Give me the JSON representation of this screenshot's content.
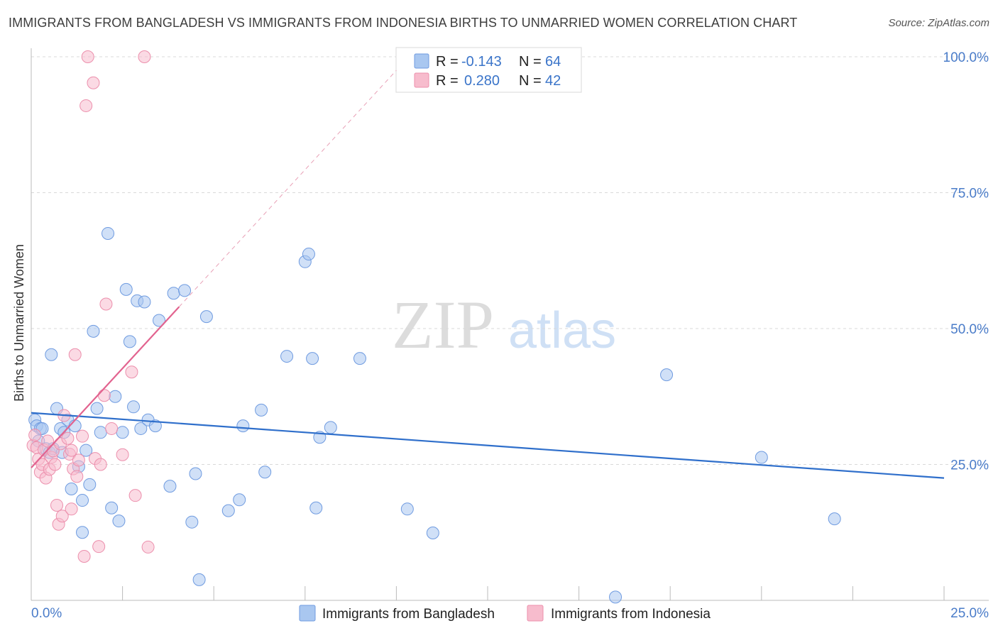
{
  "header": {
    "title": "IMMIGRANTS FROM BANGLADESH VS IMMIGRANTS FROM INDONESIA BIRTHS TO UNMARRIED WOMEN CORRELATION CHART",
    "source": "Source: ZipAtlas.com"
  },
  "watermark": {
    "zip": "ZIP",
    "atlas": "atlas"
  },
  "legend": {
    "rows": [
      {
        "r_label": "R =",
        "r_value": "-0.143",
        "n_label": "N =",
        "n_value": "64",
        "color": "#a9c7f0",
        "stroke": "#6f9be0"
      },
      {
        "r_label": "R =",
        "r_value": "0.280",
        "n_label": "N =",
        "n_value": "42",
        "color": "#f7bccd",
        "stroke": "#ec8fac"
      }
    ]
  },
  "colors": {
    "bangladesh_fill": "#a9c7f0",
    "bangladesh_stroke": "#6f9be0",
    "bangladesh_line": "#2f6fcb",
    "indonesia_fill": "#f7bccd",
    "indonesia_stroke": "#ec8fac",
    "indonesia_line": "#e2638f",
    "tick_text": "#4a7cc9",
    "grid": "#d9d9d9"
  },
  "chart_data": {
    "type": "scatter",
    "title": "IMMIGRANTS FROM BANGLADESH VS IMMIGRANTS FROM INDONESIA BIRTHS TO UNMARRIED WOMEN CORRELATION CHART",
    "xlabel": "",
    "ylabel": "Births to Unmarried Women",
    "xlim": [
      0,
      25
    ],
    "ylim": [
      0,
      100
    ],
    "x_tick_labels": [
      "0.0%",
      "25.0%"
    ],
    "y_tick_labels": [
      "25.0%",
      "50.0%",
      "75.0%",
      "100.0%"
    ],
    "y_ticks": [
      25,
      50,
      75,
      100
    ],
    "grid": true,
    "legend_position": "top-center",
    "series": [
      {
        "name": "Immigrants from Bangladesh",
        "r": -0.143,
        "n": 64,
        "trend": {
          "x": [
            0,
            25
          ],
          "y": [
            34.5,
            22.5
          ]
        },
        "points": [
          [
            0.1,
            33.2
          ],
          [
            0.15,
            32.1
          ],
          [
            0.2,
            29.3
          ],
          [
            0.25,
            31.6
          ],
          [
            0.3,
            31.6
          ],
          [
            0.4,
            27.9
          ],
          [
            0.5,
            27.2
          ],
          [
            0.55,
            45.2
          ],
          [
            0.6,
            27.9
          ],
          [
            0.7,
            35.3
          ],
          [
            0.8,
            31.6
          ],
          [
            0.85,
            27.2
          ],
          [
            0.9,
            30.9
          ],
          [
            1.0,
            33.2
          ],
          [
            1.1,
            20.5
          ],
          [
            1.2,
            32.1
          ],
          [
            1.3,
            24.6
          ],
          [
            1.4,
            18.4
          ],
          [
            1.5,
            27.6
          ],
          [
            1.6,
            21.3
          ],
          [
            1.7,
            49.5
          ],
          [
            1.8,
            35.3
          ],
          [
            1.9,
            30.9
          ],
          [
            2.1,
            67.5
          ],
          [
            2.2,
            17.0
          ],
          [
            2.3,
            37.5
          ],
          [
            2.4,
            14.6
          ],
          [
            2.5,
            30.9
          ],
          [
            2.6,
            57.2
          ],
          [
            2.7,
            47.6
          ],
          [
            2.8,
            35.6
          ],
          [
            2.9,
            55.1
          ],
          [
            3.0,
            31.6
          ],
          [
            3.1,
            54.9
          ],
          [
            3.2,
            33.2
          ],
          [
            3.4,
            32.1
          ],
          [
            3.5,
            51.5
          ],
          [
            3.8,
            21.0
          ],
          [
            3.9,
            56.5
          ],
          [
            4.2,
            57.0
          ],
          [
            4.4,
            14.4
          ],
          [
            4.5,
            23.3
          ],
          [
            4.6,
            3.8
          ],
          [
            4.8,
            52.2
          ],
          [
            5.4,
            16.5
          ],
          [
            5.7,
            18.5
          ],
          [
            5.8,
            32.1
          ],
          [
            6.3,
            35.0
          ],
          [
            6.4,
            23.6
          ],
          [
            7.0,
            44.9
          ],
          [
            7.5,
            62.3
          ],
          [
            7.6,
            63.7
          ],
          [
            7.7,
            44.5
          ],
          [
            7.8,
            17.0
          ],
          [
            7.9,
            30.0
          ],
          [
            8.2,
            31.8
          ],
          [
            9.0,
            44.5
          ],
          [
            10.3,
            16.8
          ],
          [
            11.0,
            12.4
          ],
          [
            17.4,
            41.5
          ],
          [
            20.0,
            26.3
          ],
          [
            22.0,
            15.0
          ],
          [
            16.0,
            0.6
          ],
          [
            1.4,
            12.5
          ]
        ]
      },
      {
        "name": "Immigrants from Indonesia",
        "r": 0.28,
        "n": 42,
        "trend": {
          "x": [
            0,
            4.05
          ],
          "y": [
            24.4,
            54.0
          ]
        },
        "dashed_extension": {
          "x": [
            4.05,
            10.0
          ],
          "y": [
            54.0,
            97.5
          ]
        },
        "points": [
          [
            0.05,
            28.5
          ],
          [
            0.1,
            30.4
          ],
          [
            0.15,
            28.1
          ],
          [
            0.2,
            26.0
          ],
          [
            0.25,
            23.6
          ],
          [
            0.3,
            25.0
          ],
          [
            0.35,
            27.7
          ],
          [
            0.4,
            22.5
          ],
          [
            0.45,
            29.3
          ],
          [
            0.5,
            24.1
          ],
          [
            0.55,
            26.3
          ],
          [
            0.6,
            27.5
          ],
          [
            0.65,
            25.0
          ],
          [
            0.7,
            17.5
          ],
          [
            0.75,
            14.0
          ],
          [
            0.8,
            28.8
          ],
          [
            0.85,
            15.5
          ],
          [
            0.9,
            34.0
          ],
          [
            1.0,
            29.8
          ],
          [
            1.05,
            26.9
          ],
          [
            1.1,
            16.8
          ],
          [
            1.15,
            24.2
          ],
          [
            1.2,
            45.2
          ],
          [
            1.25,
            22.8
          ],
          [
            1.3,
            25.8
          ],
          [
            1.4,
            30.2
          ],
          [
            1.45,
            8.1
          ],
          [
            1.5,
            91.0
          ],
          [
            1.55,
            100.0
          ],
          [
            1.7,
            95.2
          ],
          [
            1.75,
            26.1
          ],
          [
            1.85,
            9.9
          ],
          [
            2.0,
            37.7
          ],
          [
            2.05,
            54.5
          ],
          [
            2.2,
            31.6
          ],
          [
            2.5,
            26.8
          ],
          [
            2.75,
            42.0
          ],
          [
            2.85,
            19.3
          ],
          [
            3.1,
            100.0
          ],
          [
            3.2,
            9.8
          ],
          [
            1.1,
            27.6
          ],
          [
            1.9,
            25.0
          ]
        ]
      }
    ]
  }
}
